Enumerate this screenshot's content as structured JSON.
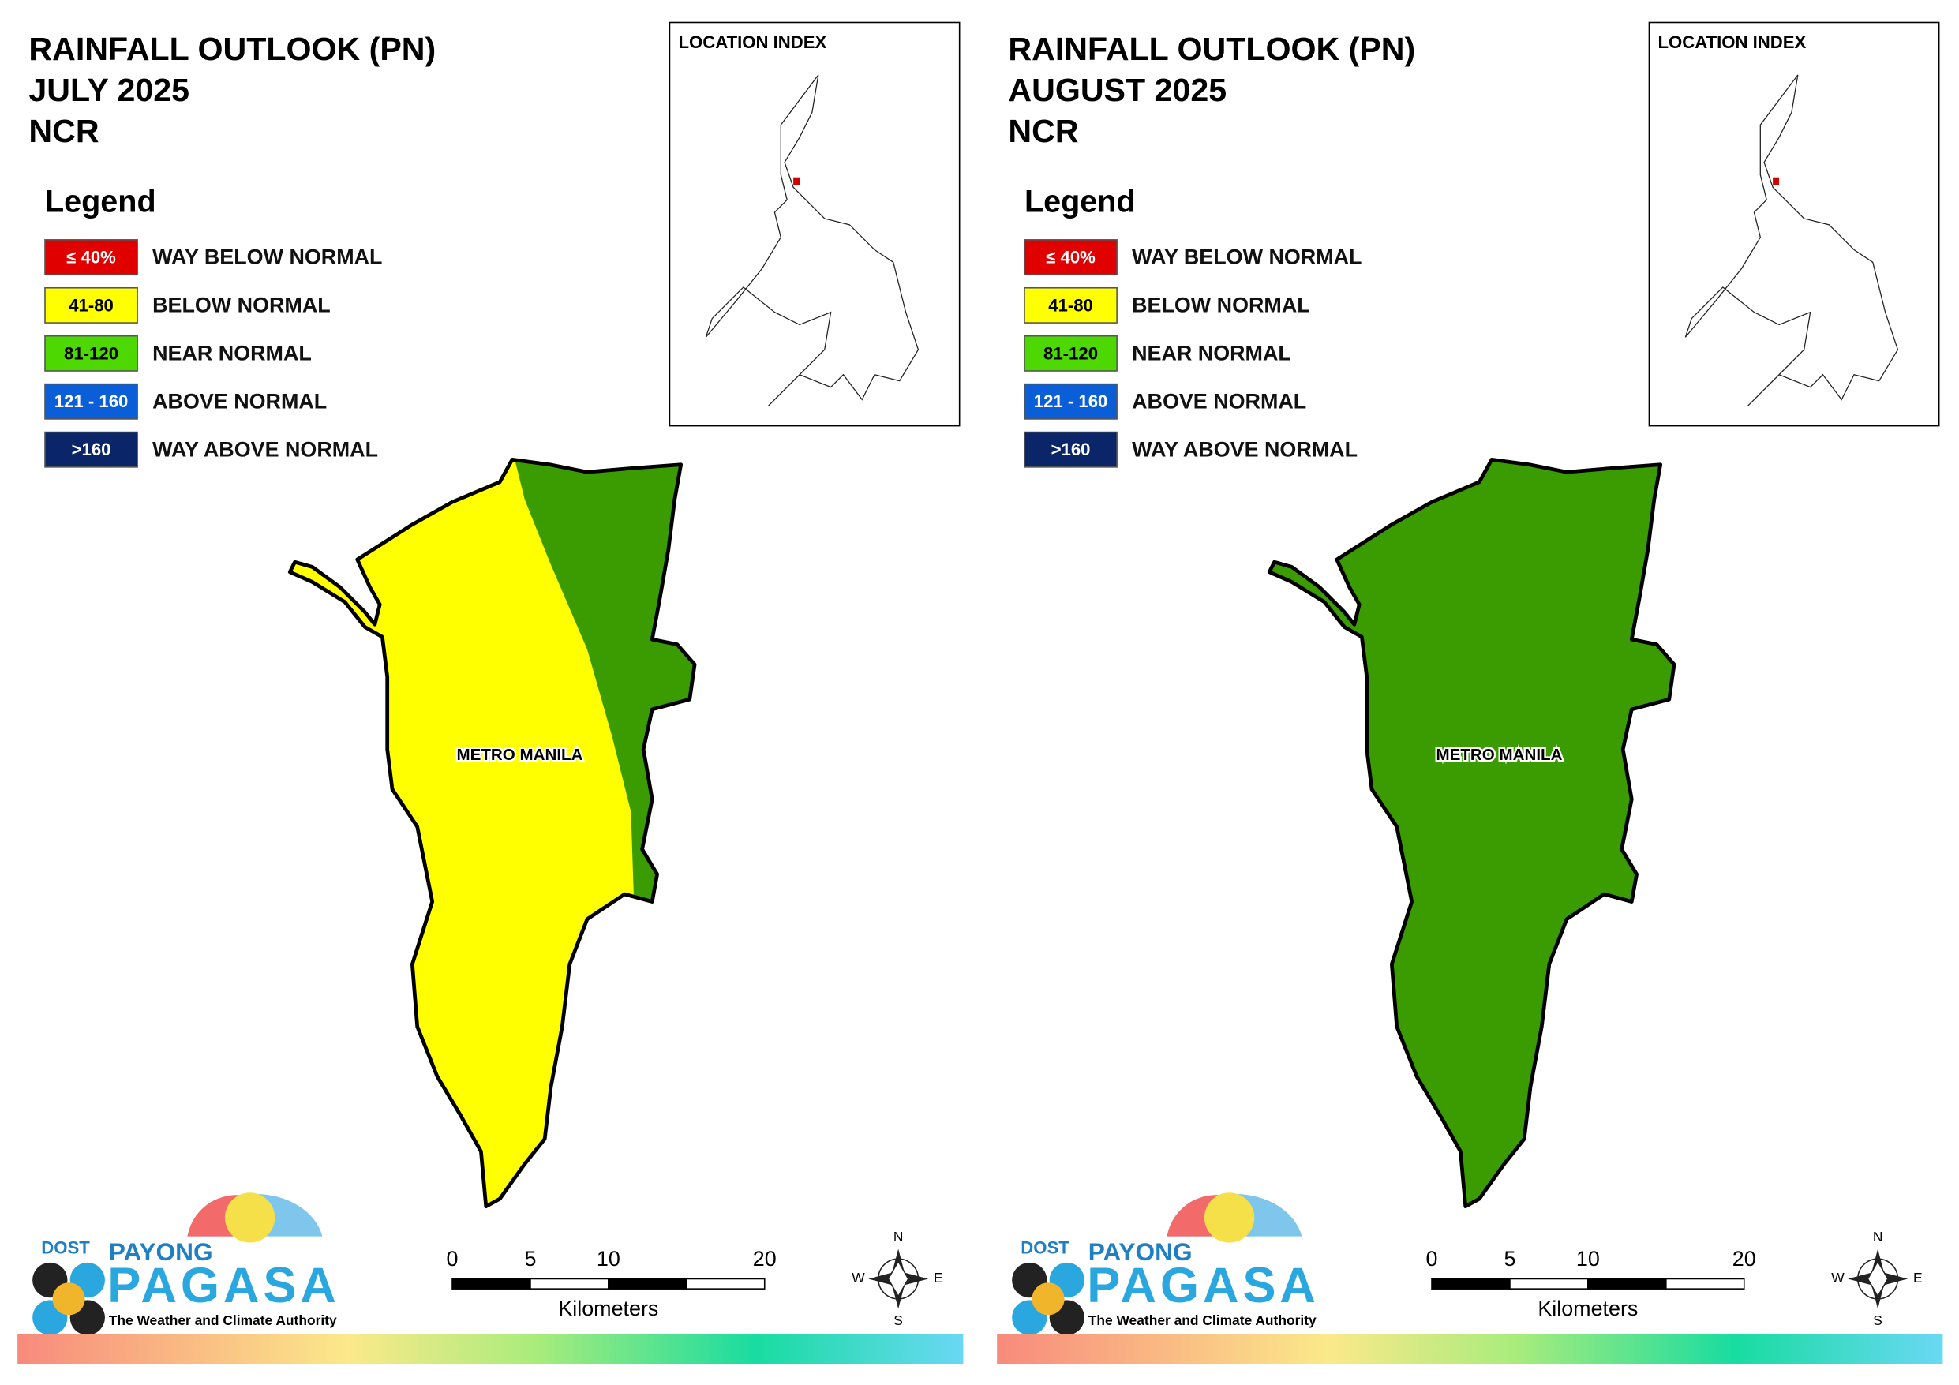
{
  "panels": [
    {
      "title": [
        "RAINFALL OUTLOOK (PN)",
        "JULY 2025",
        "NCR"
      ],
      "legend_title": "Legend",
      "legend": [
        {
          "range": "≤ 40%",
          "label": "WAY BELOW NORMAL",
          "color": "#e00000"
        },
        {
          "range": "41-80",
          "label": "BELOW NORMAL",
          "color": "#ffff00"
        },
        {
          "range": "81-120",
          "label": "NEAR NORMAL",
          "color": "#4cd800"
        },
        {
          "range": "121 - 160",
          "label": "ABOVE NORMAL",
          "color": "#0a5fd8"
        },
        {
          "range": ">160",
          "label": "WAY ABOVE NORMAL",
          "color": "#0a2668"
        }
      ],
      "location_index": "LOCATION INDEX",
      "map_label": "METRO MANILA",
      "map_fill": [
        "#ffff00",
        "#3a9c00"
      ],
      "scale": {
        "ticks": [
          0,
          5,
          10,
          20
        ],
        "unit": "Kilometers"
      },
      "compass": [
        "N",
        "E",
        "S",
        "W"
      ],
      "logo": {
        "dost": "DOST",
        "payong": "PAYONG",
        "pagasa": "PAGASA",
        "tagline": "The Weather and Climate Authority"
      }
    },
    {
      "title": [
        "RAINFALL OUTLOOK (PN)",
        "AUGUST 2025",
        "NCR"
      ],
      "legend_title": "Legend",
      "legend": [
        {
          "range": "≤ 40%",
          "label": "WAY BELOW NORMAL",
          "color": "#e00000"
        },
        {
          "range": "41-80",
          "label": "BELOW NORMAL",
          "color": "#ffff00"
        },
        {
          "range": "81-120",
          "label": "NEAR NORMAL",
          "color": "#4cd800"
        },
        {
          "range": "121 - 160",
          "label": "ABOVE NORMAL",
          "color": "#0a5fd8"
        },
        {
          "range": ">160",
          "label": "WAY ABOVE NORMAL",
          "color": "#0a2668"
        }
      ],
      "location_index": "LOCATION INDEX",
      "map_label": "METRO MANILA",
      "map_fill": [
        "#3a9c00"
      ],
      "scale": {
        "ticks": [
          0,
          5,
          10,
          20
        ],
        "unit": "Kilometers"
      },
      "compass": [
        "N",
        "E",
        "S",
        "W"
      ],
      "logo": {
        "dost": "DOST",
        "payong": "PAYONG",
        "pagasa": "PAGASA",
        "tagline": "The Weather and Climate Authority"
      }
    }
  ]
}
